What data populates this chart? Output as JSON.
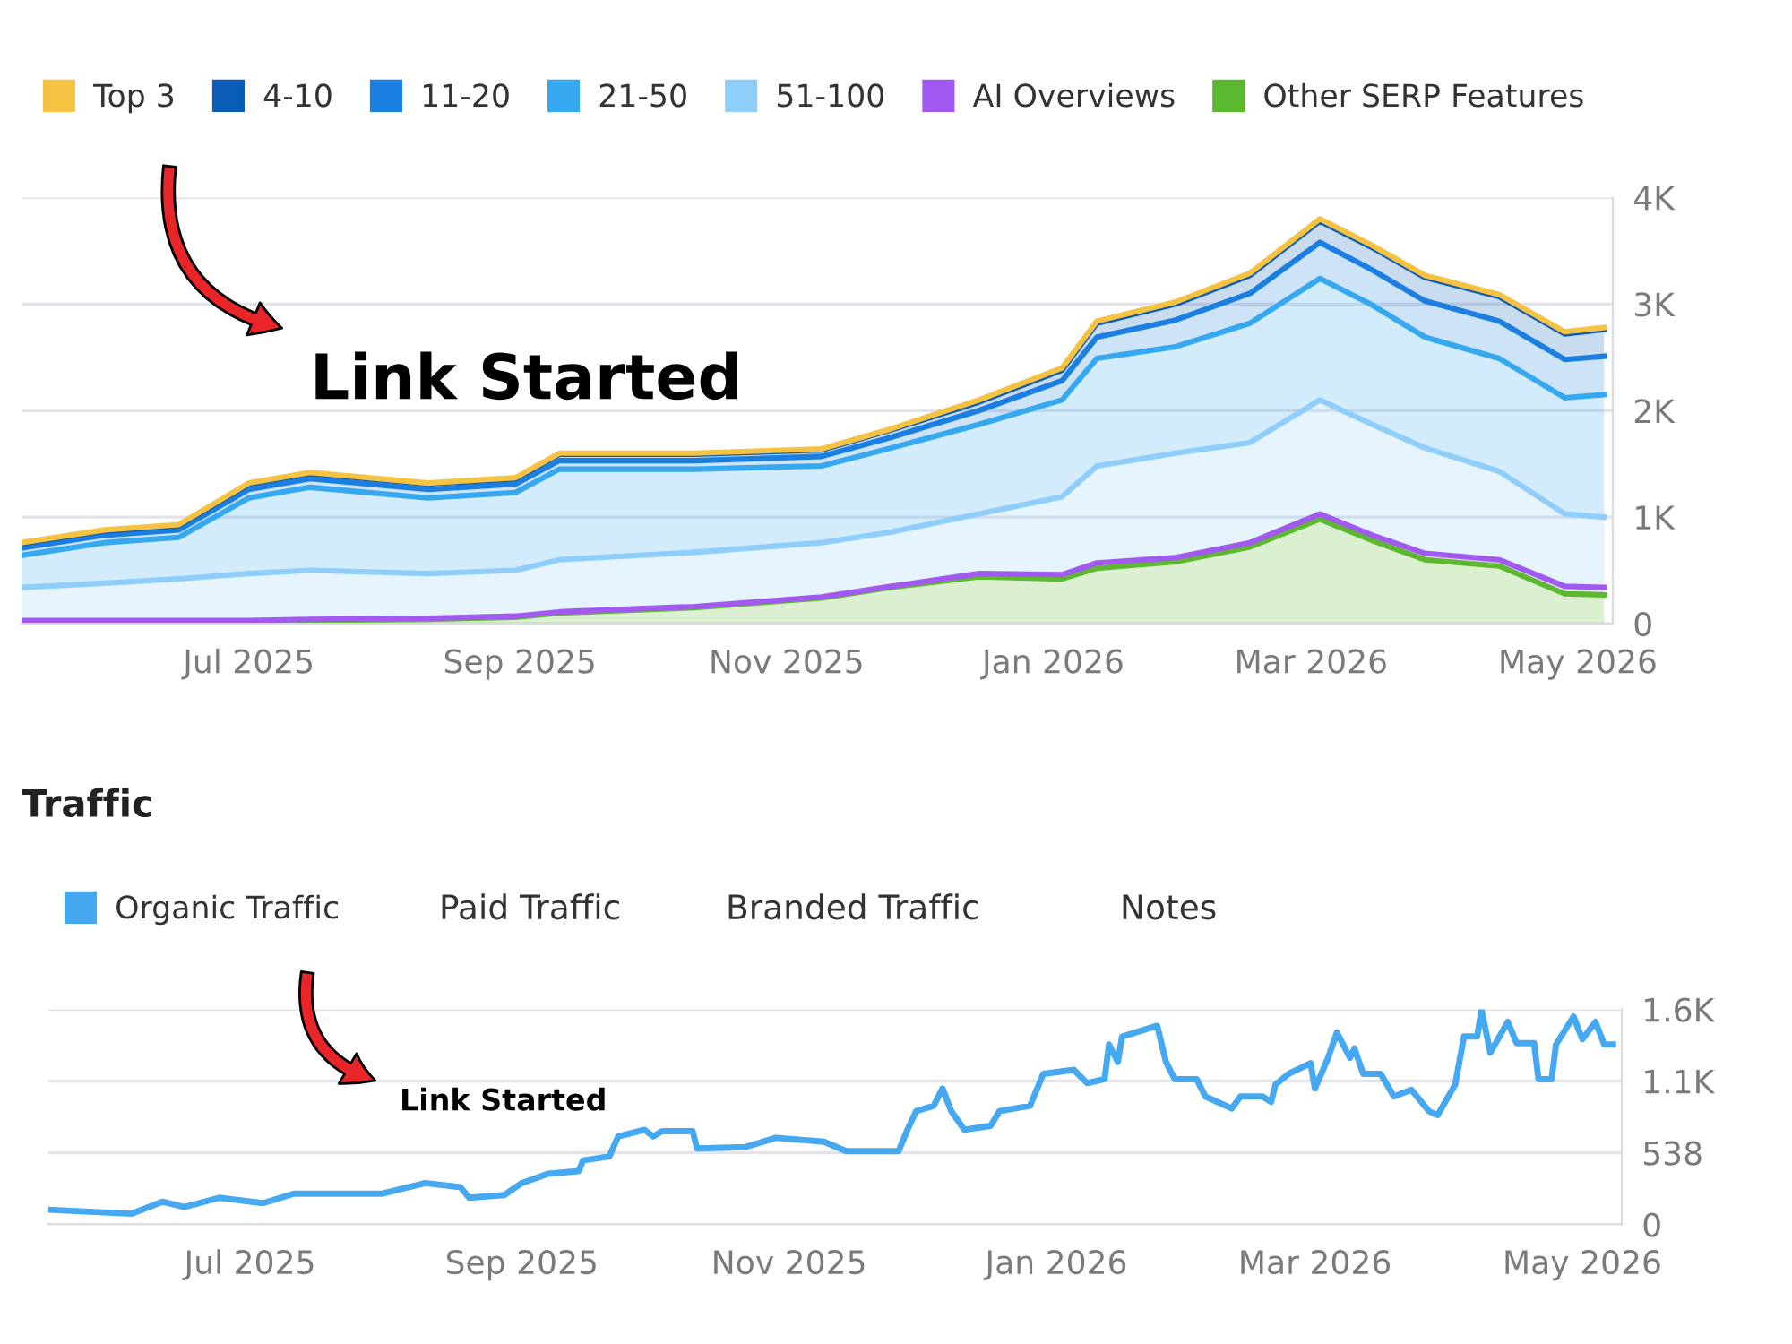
{
  "chart_data": [
    {
      "type": "area",
      "stacked": true,
      "legend": "top",
      "grid": "y",
      "marker": "none",
      "x": [
        "2025-05-10",
        "2025-05-29",
        "2025-06-15",
        "2025-07-01",
        "2025-07-15",
        "2025-08-11",
        "2025-08-31",
        "2025-09-10",
        "2025-10-11",
        "2025-11-09",
        "2025-11-25",
        "2025-12-15",
        "2026-01-03",
        "2026-01-11",
        "2026-01-29",
        "2026-02-15",
        "2026-03-03",
        "2026-03-15",
        "2026-03-27",
        "2026-04-13",
        "2026-04-28",
        "2026-05-07"
      ],
      "series": [
        {
          "name": "Other SERP Features",
          "color": "#5cb82e",
          "values": [
            20,
            20,
            20,
            20,
            30,
            40,
            60,
            100,
            150,
            240,
            340,
            440,
            420,
            520,
            580,
            720,
            980,
            780,
            600,
            540,
            280,
            270
          ]
        },
        {
          "name": "AI Overviews",
          "color": "#a259f0",
          "values": [
            10,
            10,
            10,
            10,
            10,
            10,
            10,
            10,
            10,
            10,
            10,
            30,
            40,
            50,
            40,
            40,
            50,
            50,
            60,
            60,
            70,
            70
          ]
        },
        {
          "name": "51-100",
          "color": "#8fcdfb",
          "values": [
            310,
            350,
            390,
            440,
            460,
            420,
            430,
            490,
            510,
            510,
            510,
            560,
            730,
            910,
            980,
            940,
            1070,
            1040,
            990,
            830,
            680,
            660
          ]
        },
        {
          "name": "21-50",
          "color": "#36a8f0",
          "values": [
            300,
            380,
            390,
            710,
            780,
            710,
            730,
            850,
            780,
            720,
            790,
            840,
            910,
            1010,
            1000,
            1120,
            1140,
            1120,
            1040,
            1060,
            1090,
            1150
          ]
        },
        {
          "name": "11-20",
          "color": "#1a7fe0",
          "values": [
            70,
            70,
            70,
            80,
            80,
            80,
            80,
            80,
            80,
            90,
            100,
            130,
            180,
            200,
            250,
            280,
            340,
            330,
            340,
            350,
            360,
            360
          ]
        },
        {
          "name": "4-10",
          "color": "#0a5cb8",
          "values": [
            40,
            40,
            40,
            50,
            50,
            50,
            50,
            60,
            60,
            60,
            70,
            80,
            100,
            130,
            150,
            170,
            200,
            210,
            220,
            230,
            240,
            250
          ]
        },
        {
          "name": "Top 3",
          "color": "#f5c242",
          "values": [
            10,
            10,
            10,
            10,
            10,
            10,
            10,
            10,
            10,
            10,
            10,
            20,
            20,
            20,
            20,
            20,
            20,
            20,
            20,
            20,
            20,
            20
          ]
        }
      ],
      "xlim": [
        "2025-05-10",
        "2026-05-09"
      ],
      "xticks": [
        {
          "value": "2025-07-01",
          "label": "Jul 2025"
        },
        {
          "value": "2025-09-01",
          "label": "Sep 2025"
        },
        {
          "value": "2025-11-01",
          "label": "Nov 2025"
        },
        {
          "value": "2026-01-01",
          "label": "Jan 2026"
        },
        {
          "value": "2026-03-01",
          "label": "Mar 2026"
        },
        {
          "value": "2026-05-01",
          "label": "May 2026"
        }
      ],
      "ylim": [
        0,
        4000
      ],
      "yticks": [
        0,
        {
          "value": 1000,
          "label": "1K"
        },
        {
          "value": 2000,
          "label": "2K"
        },
        {
          "value": 3000,
          "label": "3K"
        },
        {
          "value": 4000,
          "label": "4K"
        }
      ],
      "annotations": [
        "Link Started"
      ]
    },
    {
      "type": "line",
      "title": "Traffic",
      "legend": "top left",
      "grid": "y",
      "marker": "none",
      "line_style": "solid",
      "x": [
        "2025-05-16",
        "2025-06-04",
        "2025-06-11",
        "2025-06-16",
        "2025-06-24",
        "2025-07-04",
        "2025-07-11",
        "2025-07-16",
        "2025-07-31",
        "2025-08-10",
        "2025-08-18",
        "2025-08-20",
        "2025-08-28",
        "2025-09-01",
        "2025-09-07",
        "2025-09-14",
        "2025-09-15",
        "2025-09-21",
        "2025-09-23",
        "2025-09-29",
        "2025-10-01",
        "2025-10-03",
        "2025-10-10",
        "2025-10-11",
        "2025-10-22",
        "2025-10-29",
        "2025-11-09",
        "2025-11-14",
        "2025-11-26",
        "2025-11-28",
        "2025-11-30",
        "2025-12-04",
        "2025-12-06",
        "2025-12-08",
        "2025-12-11",
        "2025-12-17",
        "2025-12-19",
        "2025-12-26",
        "2025-12-29",
        "2026-01-05",
        "2026-01-08",
        "2026-01-12",
        "2026-01-13",
        "2026-01-15",
        "2026-01-16",
        "2026-01-24",
        "2026-01-26",
        "2026-01-28",
        "2026-02-02",
        "2026-02-04",
        "2026-02-10",
        "2026-02-12",
        "2026-02-17",
        "2026-02-19",
        "2026-02-20",
        "2026-02-23",
        "2026-02-28",
        "2026-03-01",
        "2026-03-04",
        "2026-03-06",
        "2026-03-09",
        "2026-03-10",
        "2026-03-12",
        "2026-03-16",
        "2026-03-19",
        "2026-03-23",
        "2026-03-27",
        "2026-03-29",
        "2026-04-02",
        "2026-04-04",
        "2026-04-07",
        "2026-04-08",
        "2026-04-10",
        "2026-04-14",
        "2026-04-16",
        "2026-04-20",
        "2026-04-21",
        "2026-04-24",
        "2026-04-25",
        "2026-04-29",
        "2026-05-01",
        "2026-05-04",
        "2026-05-06",
        "2026-05-08"
      ],
      "series": [
        {
          "name": "Organic Traffic",
          "color": "#45a8f0",
          "values": [
            110,
            80,
            170,
            130,
            200,
            160,
            230,
            230,
            230,
            310,
            280,
            200,
            220,
            310,
            380,
            400,
            480,
            510,
            660,
            710,
            660,
            700,
            700,
            570,
            580,
            650,
            620,
            550,
            550,
            710,
            850,
            890,
            1020,
            850,
            710,
            740,
            850,
            890,
            1130,
            1160,
            1060,
            1090,
            1350,
            1220,
            1410,
            1490,
            1220,
            1090,
            1090,
            960,
            870,
            960,
            960,
            920,
            1050,
            1130,
            1210,
            1020,
            1250,
            1440,
            1250,
            1320,
            1130,
            1130,
            960,
            1010,
            850,
            820,
            1050,
            1410,
            1410,
            1610,
            1290,
            1520,
            1360,
            1360,
            1090,
            1090,
            1350,
            1560,
            1390,
            1520,
            1350,
            1350
          ]
        }
      ],
      "xlim": [
        "2025-05-16",
        "2026-05-10"
      ],
      "xticks": [
        {
          "value": "2025-07-01",
          "label": "Jul 2025"
        },
        {
          "value": "2025-09-01",
          "label": "Sep 2025"
        },
        {
          "value": "2025-11-01",
          "label": "Nov 2025"
        },
        {
          "value": "2026-01-01",
          "label": "Jan 2026"
        },
        {
          "value": "2026-03-01",
          "label": "Mar 2026"
        },
        {
          "value": "2026-05-01",
          "label": "May 2026"
        }
      ],
      "ylim": [
        0,
        1614
      ],
      "yticks": [
        0,
        538,
        {
          "value": 1076,
          "label": "1.1K"
        },
        {
          "value": 1614,
          "label": "1.6K"
        }
      ],
      "annotations": [
        "Link Started",
        "Paid Traffic",
        "Branded Traffic",
        "Notes"
      ]
    }
  ]
}
